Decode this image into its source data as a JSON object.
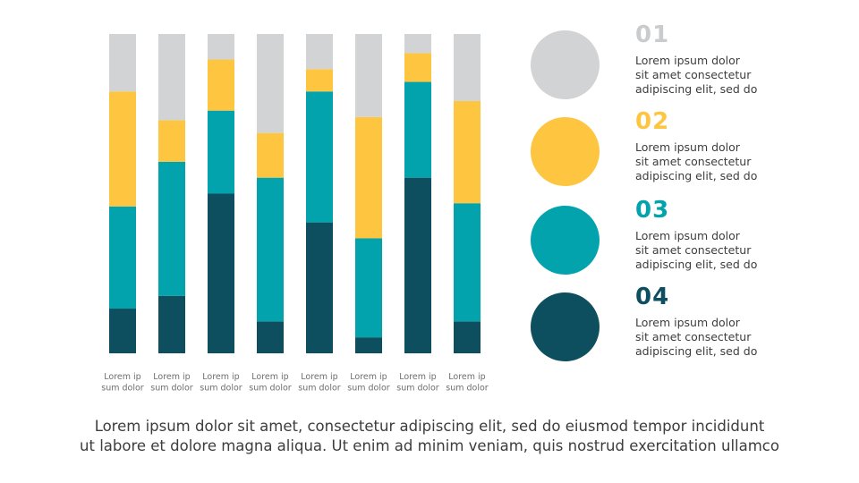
{
  "chart_data": {
    "type": "bar",
    "stacked": true,
    "ylim": [
      0,
      100
    ],
    "grid": false,
    "categories": [
      [
        "Lorem ip",
        "sum dolor"
      ],
      [
        "Lorem ip",
        "sum dolor"
      ],
      [
        "Lorem ip",
        "sum dolor"
      ],
      [
        "Lorem ip",
        "sum dolor"
      ],
      [
        "Lorem ip",
        "sum dolor"
      ],
      [
        "Lorem ip",
        "sum dolor"
      ],
      [
        "Lorem ip",
        "sum dolor"
      ],
      [
        "Lorem ip",
        "sum dolor"
      ]
    ],
    "series": [
      {
        "name": "04",
        "color": "#0d4f5f",
        "values": [
          14,
          18,
          50,
          10,
          41,
          5,
          55,
          10
        ]
      },
      {
        "name": "03",
        "color": "#02a3ad",
        "values": [
          32,
          42,
          26,
          45,
          41,
          31,
          30,
          37
        ]
      },
      {
        "name": "02",
        "color": "#fec540",
        "values": [
          36,
          13,
          16,
          14,
          7,
          38,
          9,
          32
        ]
      },
      {
        "name": "01",
        "color": "#d1d3d4",
        "values": [
          18,
          27,
          8,
          31,
          11,
          26,
          6,
          21
        ]
      }
    ]
  },
  "legend": [
    {
      "number": "01",
      "color": "#d1d3d4",
      "num_color": "#c9cbcd",
      "lines": [
        "Lorem ipsum dolor",
        "sit amet consectetur",
        "adipiscing elit, sed do"
      ]
    },
    {
      "number": "02",
      "color": "#fec540",
      "num_color": "#fec540",
      "lines": [
        "Lorem ipsum dolor",
        "sit amet consectetur",
        "adipiscing elit, sed do"
      ]
    },
    {
      "number": "03",
      "color": "#02a3ad",
      "num_color": "#02a3ad",
      "lines": [
        "Lorem ipsum dolor",
        "sit amet consectetur",
        "adipiscing elit, sed do"
      ]
    },
    {
      "number": "04",
      "color": "#0d4f5f",
      "num_color": "#0d4f5f",
      "lines": [
        "Lorem ipsum dolor",
        "sit amet consectetur",
        "adipiscing elit, sed do"
      ]
    }
  ],
  "caption": {
    "line1": "Lorem ipsum dolor sit amet, consectetur adipiscing elit, sed do eiusmod tempor incididunt",
    "line2": "ut labore et dolore magna aliqua. Ut enim ad minim veniam, quis nostrud exercitation ullamco"
  }
}
